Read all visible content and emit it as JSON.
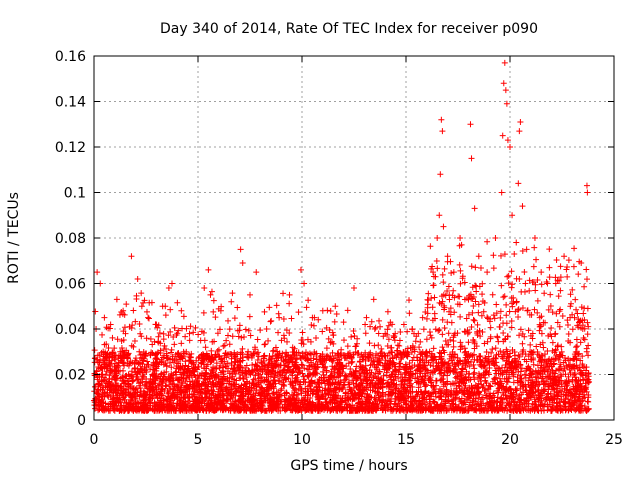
{
  "chart_data": {
    "type": "scatter",
    "title": "Day 340 of 2014, Rate Of TEC Index for receiver p090",
    "xlabel": "GPS time / hours",
    "ylabel": "ROTI / TECUs",
    "xlim": [
      0,
      25
    ],
    "ylim": [
      0,
      0.16
    ],
    "xticks": [
      0,
      5,
      10,
      15,
      20,
      25
    ],
    "yticks": [
      0,
      0.02,
      0.04,
      0.06,
      0.08,
      0.1,
      0.12,
      0.14,
      0.16
    ],
    "xtick_labels": [
      "0",
      "5",
      "10",
      "15",
      "20",
      "25"
    ],
    "ytick_labels": [
      "0",
      "0.02",
      "0.04",
      "0.06",
      "0.08",
      "0.1",
      "0.12",
      "0.14",
      "0.16"
    ],
    "grid": true,
    "marker": "+",
    "marker_color": "#ff0000",
    "series": [
      {
        "name": "ROTI",
        "points": [
          [
            0.1,
            0.04
          ],
          [
            0.15,
            0.065
          ],
          [
            0.3,
            0.06
          ],
          [
            0.5,
            0.045
          ],
          [
            0.8,
            0.042
          ],
          [
            1.1,
            0.053
          ],
          [
            1.4,
            0.048
          ],
          [
            1.8,
            0.072
          ],
          [
            2.1,
            0.062
          ],
          [
            2.3,
            0.05
          ],
          [
            2.6,
            0.045
          ],
          [
            3.0,
            0.042
          ],
          [
            3.3,
            0.05
          ],
          [
            3.6,
            0.058
          ],
          [
            3.75,
            0.06
          ],
          [
            4.2,
            0.048
          ],
          [
            4.6,
            0.035
          ],
          [
            5.3,
            0.058
          ],
          [
            5.5,
            0.066
          ],
          [
            5.6,
            0.055
          ],
          [
            6.1,
            0.048
          ],
          [
            6.6,
            0.052
          ],
          [
            7.05,
            0.075
          ],
          [
            7.15,
            0.069
          ],
          [
            7.5,
            0.055
          ],
          [
            7.8,
            0.065
          ],
          [
            8.3,
            0.04
          ],
          [
            8.9,
            0.045
          ],
          [
            9.4,
            0.055
          ],
          [
            9.95,
            0.066
          ],
          [
            10.1,
            0.06
          ],
          [
            10.5,
            0.045
          ],
          [
            11.0,
            0.048
          ],
          [
            11.6,
            0.05
          ],
          [
            12.0,
            0.043
          ],
          [
            12.5,
            0.058
          ],
          [
            13.1,
            0.045
          ],
          [
            13.5,
            0.04
          ],
          [
            14.0,
            0.038
          ],
          [
            14.4,
            0.037
          ],
          [
            14.9,
            0.042
          ],
          [
            15.3,
            0.04
          ],
          [
            15.8,
            0.045
          ],
          [
            16.3,
            0.065
          ],
          [
            16.5,
            0.08
          ],
          [
            16.6,
            0.09
          ],
          [
            16.65,
            0.108
          ],
          [
            16.7,
            0.132
          ],
          [
            16.75,
            0.127
          ],
          [
            16.8,
            0.085
          ],
          [
            17.0,
            0.072
          ],
          [
            17.3,
            0.065
          ],
          [
            17.6,
            0.08
          ],
          [
            18.1,
            0.13
          ],
          [
            18.15,
            0.115
          ],
          [
            18.3,
            0.093
          ],
          [
            18.5,
            0.072
          ],
          [
            18.9,
            0.065
          ],
          [
            19.3,
            0.08
          ],
          [
            19.6,
            0.1
          ],
          [
            19.65,
            0.125
          ],
          [
            19.7,
            0.148
          ],
          [
            19.75,
            0.157
          ],
          [
            19.8,
            0.145
          ],
          [
            19.85,
            0.139
          ],
          [
            19.9,
            0.123
          ],
          [
            20.0,
            0.12
          ],
          [
            20.1,
            0.09
          ],
          [
            20.3,
            0.078
          ],
          [
            20.4,
            0.104
          ],
          [
            20.45,
            0.127
          ],
          [
            20.5,
            0.131
          ],
          [
            20.6,
            0.094
          ],
          [
            20.8,
            0.075
          ],
          [
            21.2,
            0.08
          ],
          [
            21.5,
            0.065
          ],
          [
            21.8,
            0.06
          ],
          [
            22.2,
            0.06
          ],
          [
            22.6,
            0.072
          ],
          [
            22.9,
            0.05
          ],
          [
            23.1,
            0.045
          ],
          [
            23.5,
            0.04
          ],
          [
            23.7,
            0.103
          ],
          [
            23.72,
            0.1
          ]
        ],
        "background_band": {
          "description_note": "dense cluster of measurements spanning the full day",
          "x_range": [
            0,
            23.8
          ],
          "typical_low": 0.004,
          "typical_high": 0.03
        }
      }
    ]
  }
}
